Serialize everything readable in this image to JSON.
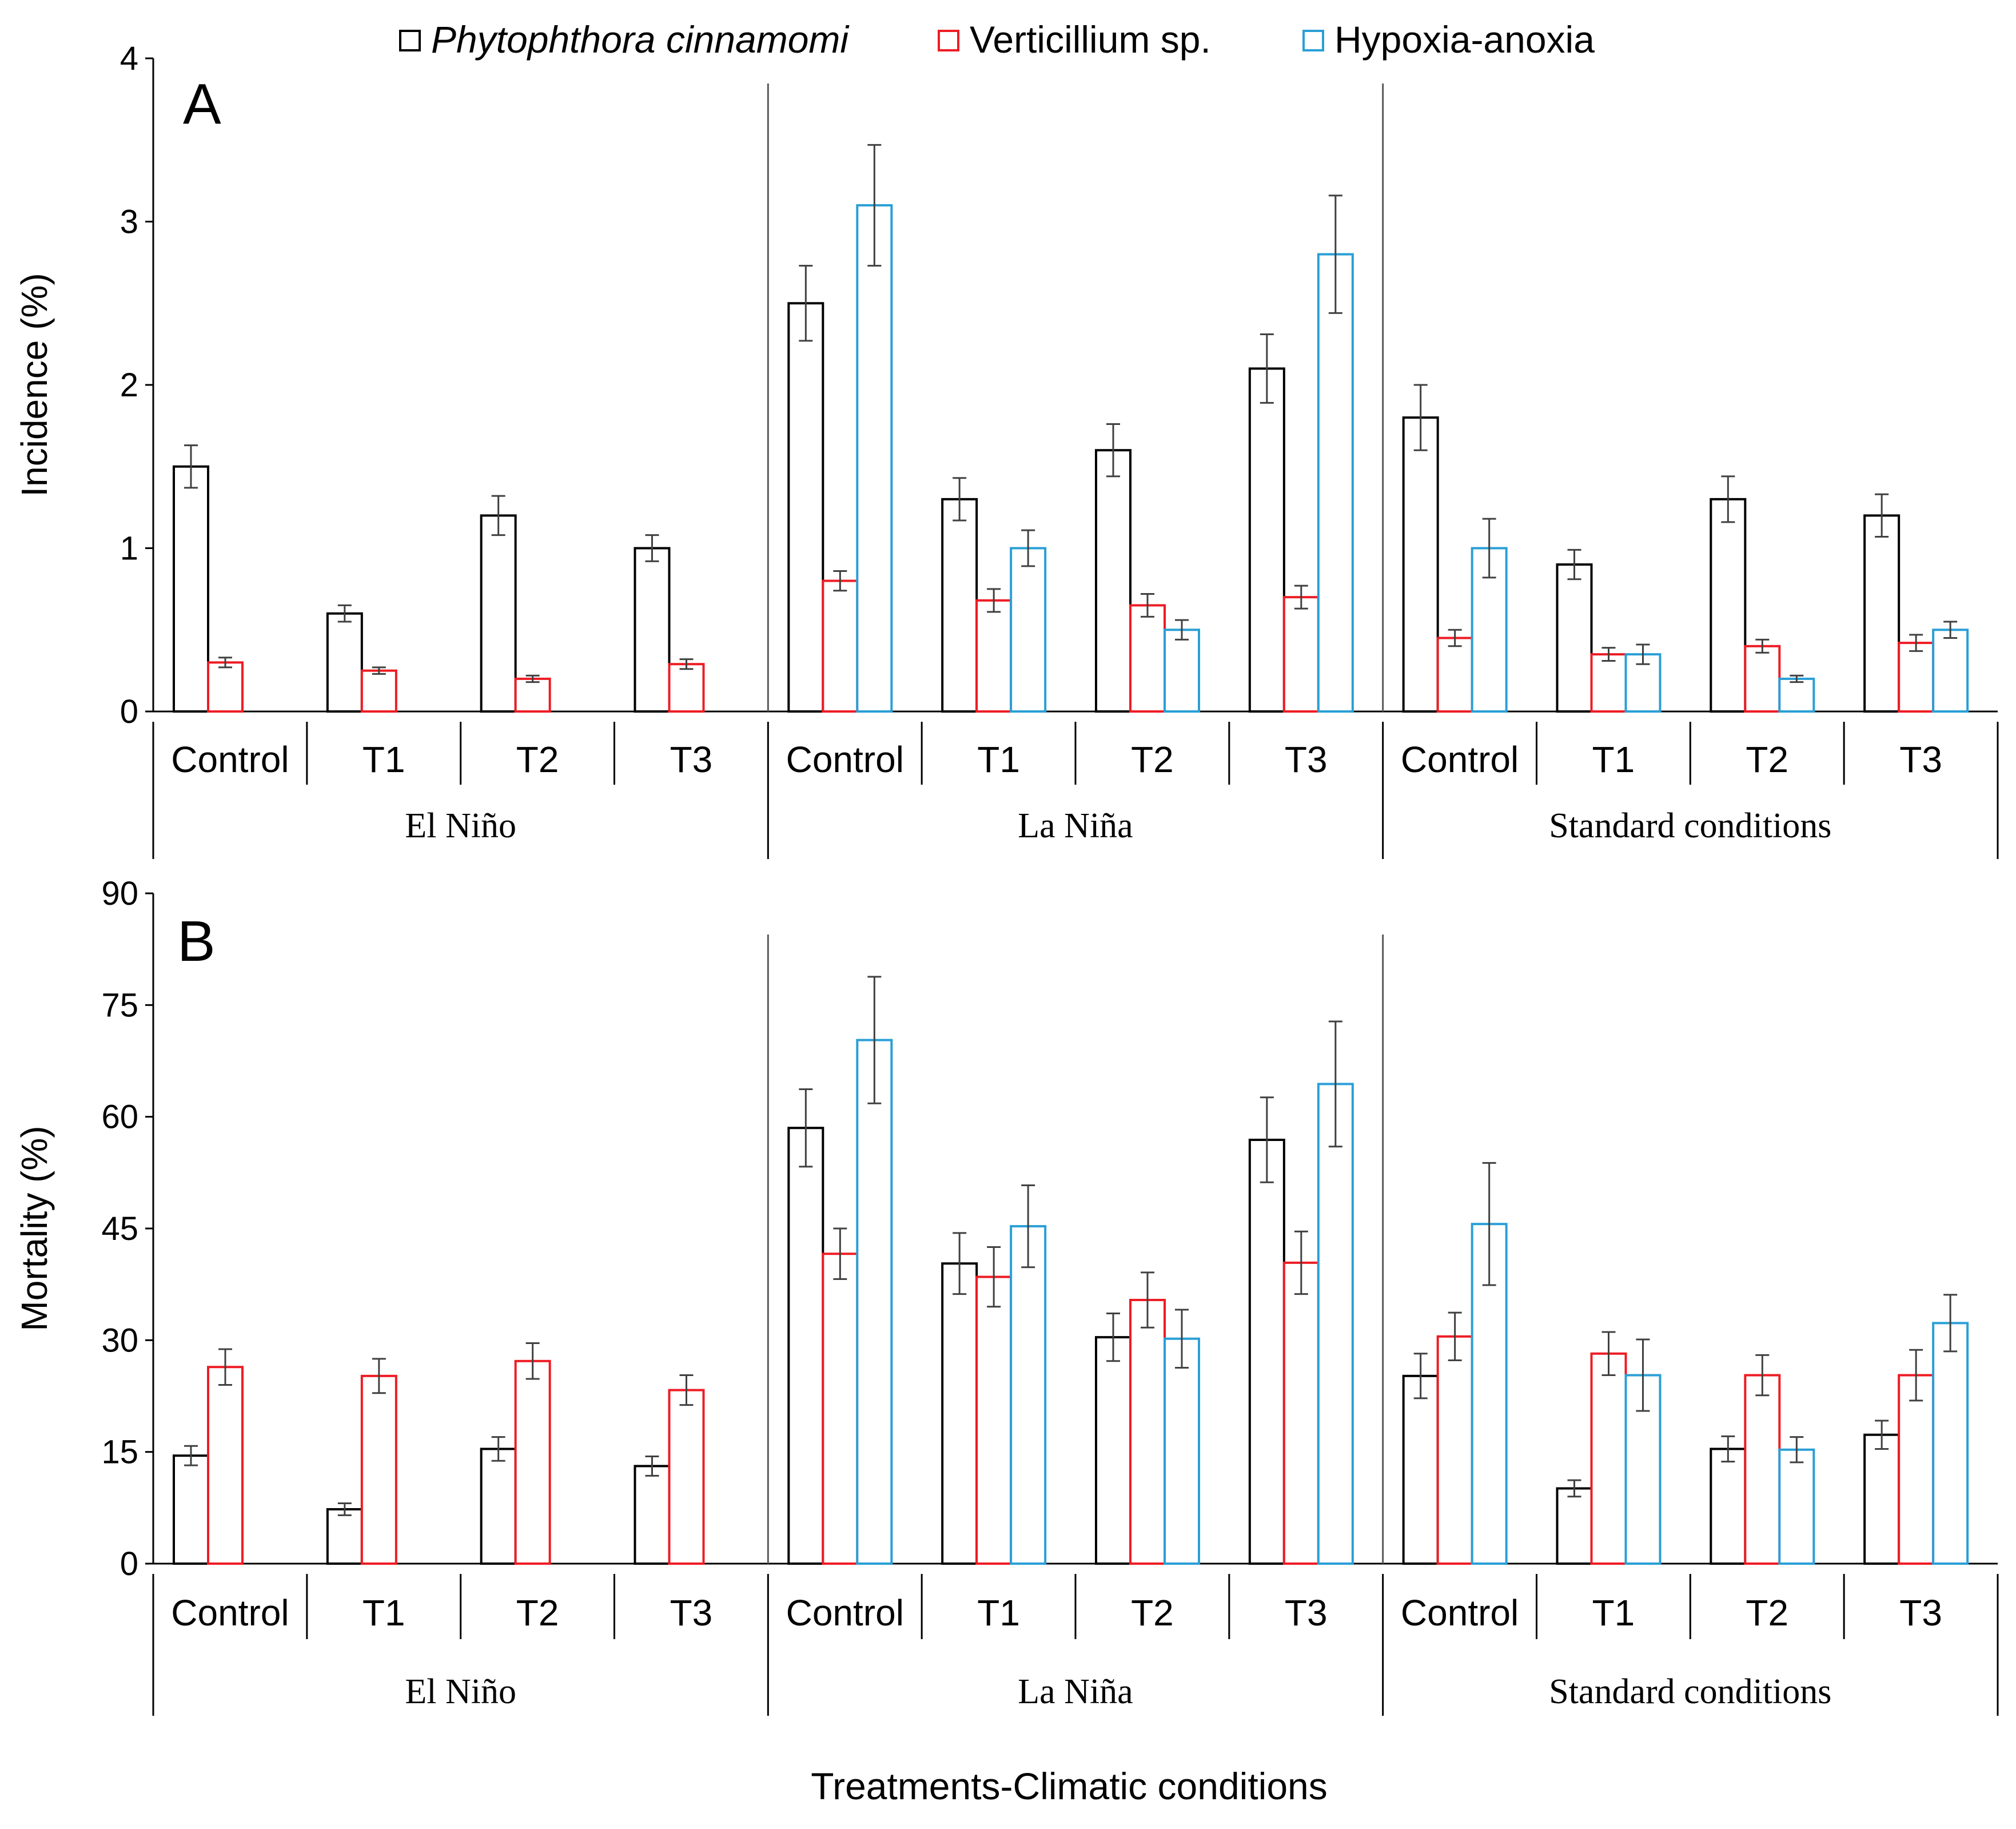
{
  "legend": {
    "items": [
      {
        "label": "Phytophthora cinnamomi",
        "italic": true,
        "color": "#000000"
      },
      {
        "label": "Verticillium sp.",
        "italic": false,
        "color": "#ee1c24"
      },
      {
        "label": "Hypoxia-anoxia",
        "italic": false,
        "color": "#2a9fd6"
      }
    ]
  },
  "x_axis_title": "Treatments-Climatic conditions",
  "chart_data": [
    {
      "type": "bar",
      "panel_label": "A",
      "ylabel": "Incidence (%)",
      "ylim": [
        0,
        4
      ],
      "yticks": [
        "0",
        "1",
        "2",
        "3",
        "4"
      ],
      "grid": false,
      "groups": [
        "El Niño",
        "La Niña",
        "Standard conditions"
      ],
      "categories": [
        "Control",
        "T1",
        "T2",
        "T3"
      ],
      "series": [
        {
          "name": "Phytophthora cinnamomi",
          "color": "#000000",
          "values": [
            [
              1.5,
              0.6,
              1.2,
              1.0
            ],
            [
              2.5,
              1.3,
              1.6,
              2.1
            ],
            [
              1.8,
              0.9,
              1.3,
              1.2
            ]
          ],
          "errors": [
            [
              0.13,
              0.05,
              0.12,
              0.08
            ],
            [
              0.23,
              0.13,
              0.16,
              0.21
            ],
            [
              0.2,
              0.09,
              0.14,
              0.13
            ]
          ]
        },
        {
          "name": "Verticillium sp.",
          "color": "#ee1c24",
          "values": [
            [
              0.3,
              0.25,
              0.2,
              0.29
            ],
            [
              0.8,
              0.68,
              0.65,
              0.7
            ],
            [
              0.45,
              0.35,
              0.4,
              0.42
            ]
          ],
          "errors": [
            [
              0.03,
              0.02,
              0.02,
              0.03
            ],
            [
              0.06,
              0.07,
              0.07,
              0.07
            ],
            [
              0.05,
              0.04,
              0.04,
              0.05
            ]
          ]
        },
        {
          "name": "Hypoxia-anoxia",
          "color": "#2a9fd6",
          "values": [
            [
              null,
              null,
              null,
              null
            ],
            [
              3.1,
              1.0,
              0.5,
              2.8
            ],
            [
              1.0,
              0.35,
              0.2,
              0.5
            ]
          ],
          "errors": [
            [
              null,
              null,
              null,
              null
            ],
            [
              0.37,
              0.11,
              0.06,
              0.36
            ],
            [
              0.18,
              0.06,
              0.02,
              0.05
            ]
          ]
        }
      ]
    },
    {
      "type": "bar",
      "panel_label": "B",
      "ylabel": "Mortality (%)",
      "ylim": [
        0,
        90
      ],
      "yticks": [
        "0",
        "15",
        "30",
        "45",
        "60",
        "75",
        "90"
      ],
      "grid": false,
      "groups": [
        "El Niño",
        "La Niña",
        "Standard conditions"
      ],
      "categories": [
        "Control",
        "T1",
        "T2",
        "T3"
      ],
      "series": [
        {
          "name": "Phytophthora cinnamomi",
          "color": "#000000",
          "values": [
            [
              14.5,
              7.3,
              15.4,
              13.1
            ],
            [
              58.5,
              40.3,
              30.4,
              56.9
            ],
            [
              25.2,
              10.1,
              15.4,
              17.3
            ]
          ],
          "errors": [
            [
              1.3,
              0.8,
              1.6,
              1.3
            ],
            [
              5.2,
              4.1,
              3.2,
              5.7
            ],
            [
              3.0,
              1.1,
              1.7,
              1.9
            ]
          ]
        },
        {
          "name": "Verticillium sp.",
          "color": "#ee1c24",
          "values": [
            [
              26.4,
              25.2,
              27.2,
              23.3
            ],
            [
              41.6,
              38.5,
              35.4,
              40.4
            ],
            [
              30.5,
              28.2,
              25.3,
              25.3
            ]
          ],
          "errors": [
            [
              2.4,
              2.3,
              2.4,
              2.0
            ],
            [
              3.4,
              4.0,
              3.7,
              4.2
            ],
            [
              3.2,
              2.9,
              2.7,
              3.4
            ]
          ]
        },
        {
          "name": "Hypoxia-anoxia",
          "color": "#2a9fd6",
          "values": [
            [
              null,
              null,
              null,
              null
            ],
            [
              70.3,
              45.3,
              30.2,
              64.4
            ],
            [
              45.6,
              25.3,
              15.3,
              32.3
            ]
          ],
          "errors": [
            [
              null,
              null,
              null,
              null
            ],
            [
              8.5,
              5.5,
              3.9,
              8.4
            ],
            [
              8.2,
              4.8,
              1.7,
              3.8
            ]
          ]
        }
      ]
    }
  ]
}
